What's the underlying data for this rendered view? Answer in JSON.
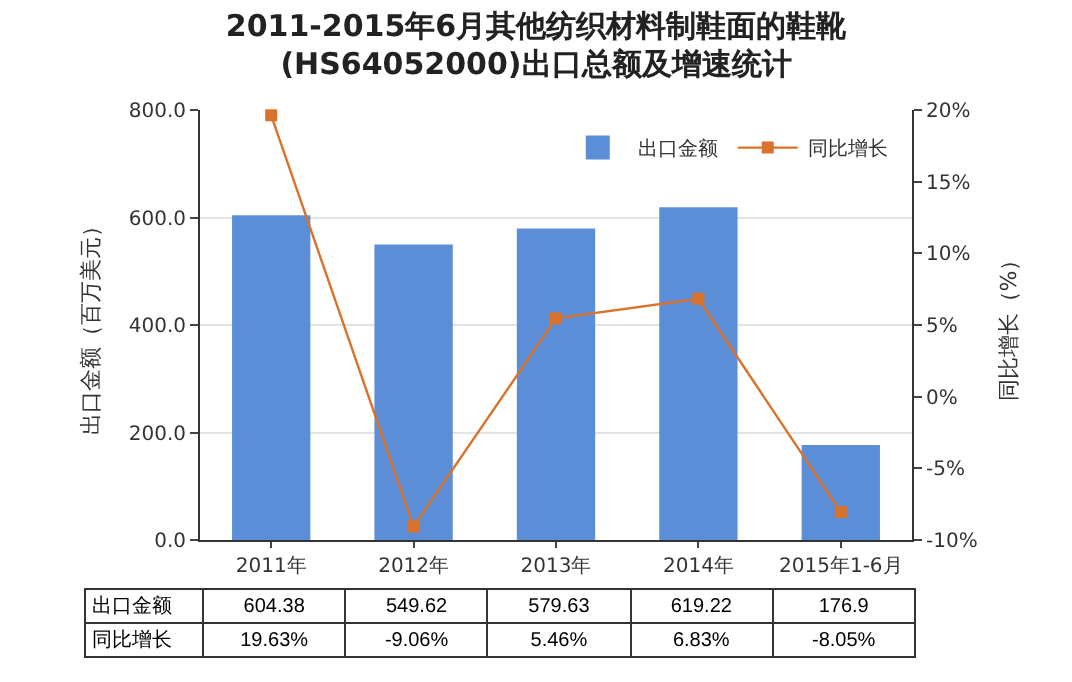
{
  "chart_data": {
    "type": "bar",
    "title": "2011-2015年6月其他纺织材料制鞋面的鞋靴(HS64052000)出口总额及增速统计",
    "ylabel": "出口金额（百万美元）",
    "y2label": "同比增长（%）",
    "categories": [
      "2011年",
      "2012年",
      "2013年",
      "2014年",
      "2015年1-6月"
    ],
    "series": [
      {
        "name": "出口金额",
        "color": "#5b8ed6",
        "values": [
          604.38,
          549.62,
          579.63,
          619.22,
          176.9
        ],
        "value_labels": [
          "604.38",
          "549.62",
          "579.63",
          "619.22",
          "176.9"
        ]
      },
      {
        "name": "同比增长",
        "type": "line",
        "axis": "y2",
        "color": "#d9732b",
        "values": [
          19.63,
          -9.06,
          5.46,
          6.83,
          -8.05
        ],
        "value_labels": [
          "19.63%",
          "-9.06%",
          "5.46%",
          "6.83%",
          "-8.05%"
        ]
      }
    ],
    "ylim": [
      0,
      800
    ],
    "yticks": [
      {
        "value": 0,
        "label": "0.0"
      },
      {
        "value": 200,
        "label": "200.0"
      },
      {
        "value": 400,
        "label": "400.0"
      },
      {
        "value": 600,
        "label": "600.0"
      },
      {
        "value": 800,
        "label": "800.0"
      }
    ],
    "y2lim": [
      -10,
      20
    ],
    "y2ticks": [
      {
        "value": -10,
        "label": "-10%"
      },
      {
        "value": -5,
        "label": "-5%"
      },
      {
        "value": 0,
        "label": "0%"
      },
      {
        "value": 5,
        "label": "5%"
      },
      {
        "value": 10,
        "label": "10%"
      },
      {
        "value": 15,
        "label": "15%"
      },
      {
        "value": 20,
        "label": "20%"
      }
    ],
    "grid": "y",
    "legend": "top right",
    "marker": "square",
    "line_style": "solid"
  }
}
